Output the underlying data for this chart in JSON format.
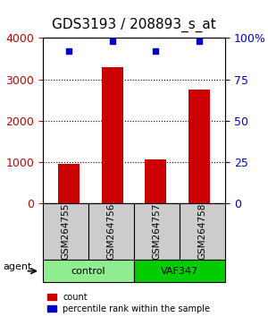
{
  "title": "GDS3193 / 208893_s_at",
  "samples": [
    "GSM264755",
    "GSM264756",
    "GSM264757",
    "GSM264758"
  ],
  "counts": [
    950,
    3300,
    1060,
    2750
  ],
  "percentile_ranks": [
    92,
    98,
    92,
    98
  ],
  "bar_color": "#cc0000",
  "dot_color": "#0000cc",
  "ylim_left": [
    0,
    4000
  ],
  "ylim_right": [
    0,
    100
  ],
  "yticks_left": [
    0,
    1000,
    2000,
    3000,
    4000
  ],
  "yticks_right": [
    0,
    25,
    50,
    75,
    100
  ],
  "yticklabels_right": [
    "0",
    "25",
    "50",
    "75",
    "100%"
  ],
  "groups": [
    {
      "label": "control",
      "color": "#90ee90",
      "samples": [
        0,
        1
      ]
    },
    {
      "label": "VAF347",
      "color": "#00cc00",
      "samples": [
        2,
        3
      ]
    }
  ],
  "group_row_label": "agent",
  "legend_count_label": "count",
  "legend_pct_label": "percentile rank within the sample",
  "background_color": "#ffffff",
  "plot_area_bg": "#ffffff",
  "sample_box_color": "#cccccc",
  "title_fontsize": 11,
  "tick_fontsize": 9,
  "bar_width": 0.5
}
